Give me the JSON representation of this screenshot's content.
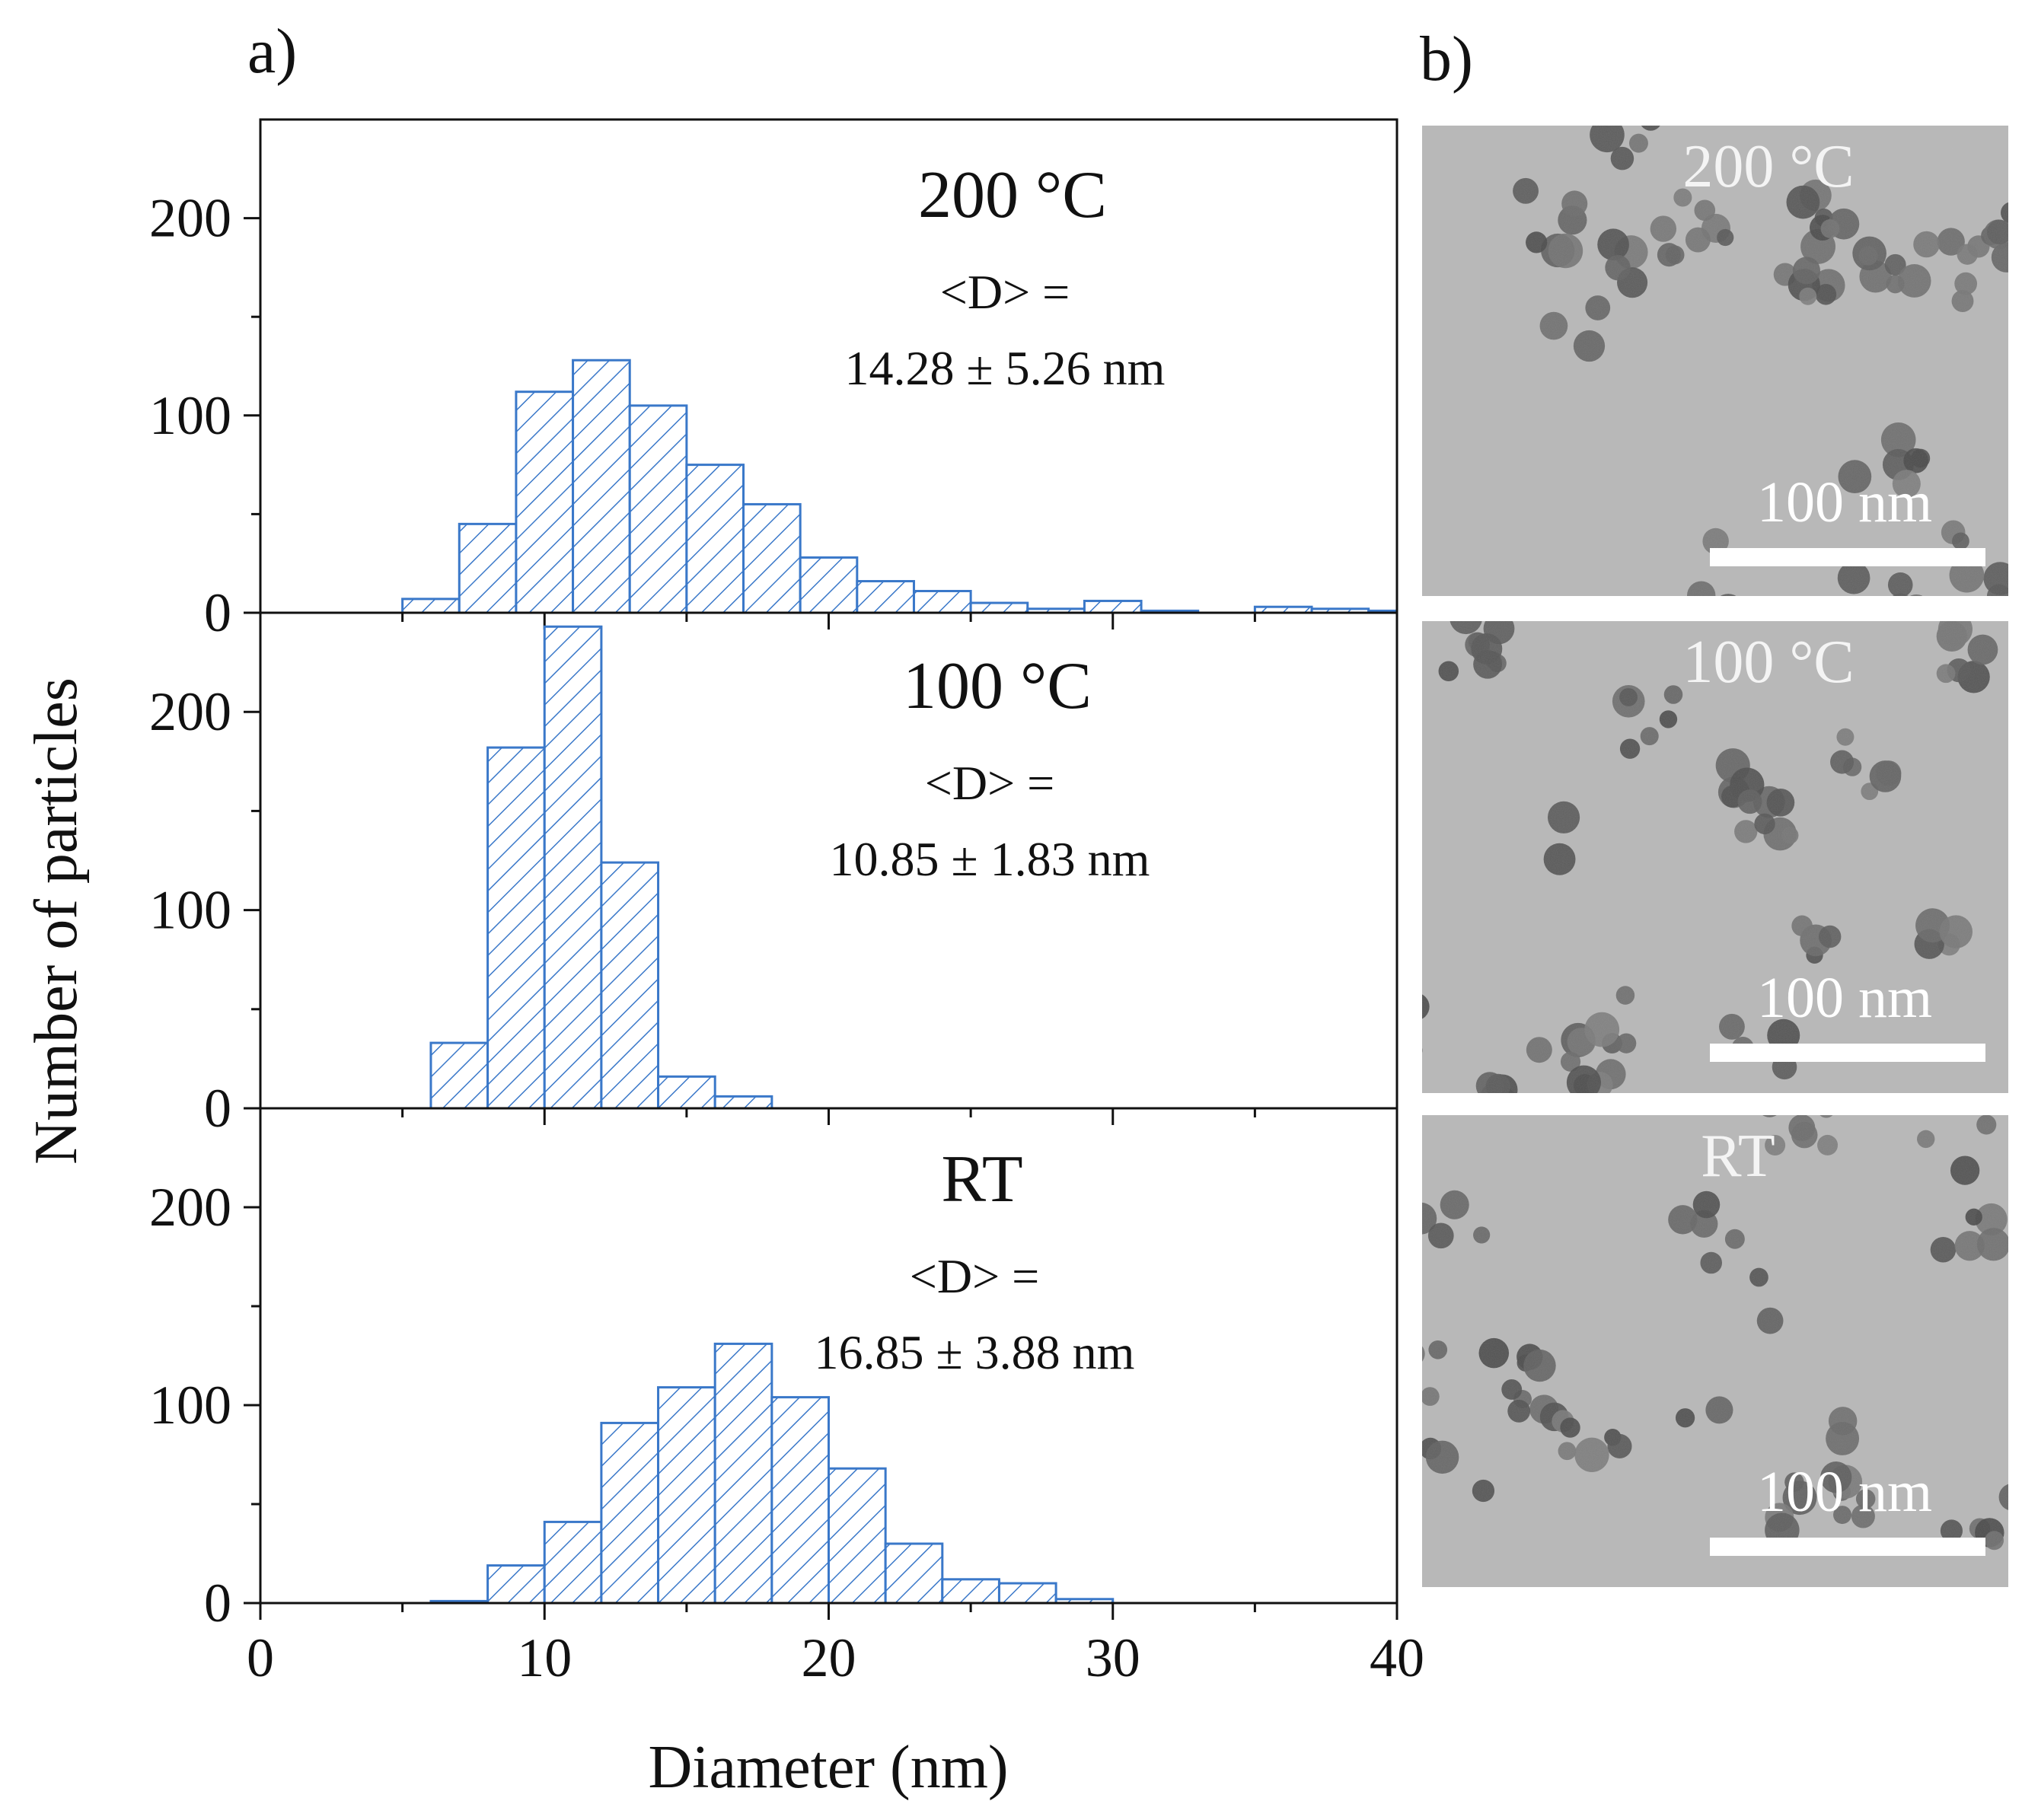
{
  "chart_data": {
    "type": "bar",
    "panel_label": "a)",
    "xlabel": "Diameter (nm)",
    "ylabel": "Number of particles",
    "xlim": [
      0,
      40
    ],
    "x_ticks": [
      "0",
      "10",
      "20",
      "30",
      "40"
    ],
    "y_ticks": [
      "0",
      "100",
      "200"
    ],
    "bin_width": 2,
    "bar_color": "#3a78c9",
    "hatch": "diagonal",
    "panels": [
      {
        "name": "200 °C",
        "label": "200 °C",
        "stat_label": "<D> =",
        "stat_value": "14.28 ± 5.26 nm",
        "ylim": [
          0,
          250
        ],
        "bins": [
          {
            "start": 5,
            "end": 7,
            "count": 7
          },
          {
            "start": 7,
            "end": 9,
            "count": 45
          },
          {
            "start": 9,
            "end": 11,
            "count": 112
          },
          {
            "start": 11,
            "end": 13,
            "count": 128
          },
          {
            "start": 13,
            "end": 15,
            "count": 105
          },
          {
            "start": 15,
            "end": 17,
            "count": 75
          },
          {
            "start": 17,
            "end": 19,
            "count": 55
          },
          {
            "start": 19,
            "end": 21,
            "count": 28
          },
          {
            "start": 21,
            "end": 23,
            "count": 16
          },
          {
            "start": 23,
            "end": 25,
            "count": 11
          },
          {
            "start": 25,
            "end": 27,
            "count": 5
          },
          {
            "start": 27,
            "end": 29,
            "count": 2
          },
          {
            "start": 29,
            "end": 31,
            "count": 6
          },
          {
            "start": 31,
            "end": 33,
            "count": 1
          },
          {
            "start": 35,
            "end": 37,
            "count": 3
          },
          {
            "start": 37,
            "end": 39,
            "count": 2
          },
          {
            "start": 39,
            "end": 40,
            "count": 1
          }
        ]
      },
      {
        "name": "100 °C",
        "label": "100 °C",
        "stat_label": "<D> =",
        "stat_value": "10.85 ± 1.83 nm",
        "ylim": [
          0,
          250
        ],
        "bins": [
          {
            "start": 6,
            "end": 8,
            "count": 33
          },
          {
            "start": 8,
            "end": 10,
            "count": 182
          },
          {
            "start": 10,
            "end": 12,
            "count": 243
          },
          {
            "start": 12,
            "end": 14,
            "count": 124
          },
          {
            "start": 14,
            "end": 16,
            "count": 16
          },
          {
            "start": 16,
            "end": 18,
            "count": 6
          }
        ]
      },
      {
        "name": "RT",
        "label": "RT",
        "stat_label": "<D> =",
        "stat_value": "16.85 ± 3.88 nm",
        "ylim": [
          0,
          250
        ],
        "bins": [
          {
            "start": 6,
            "end": 8,
            "count": 1
          },
          {
            "start": 8,
            "end": 10,
            "count": 19
          },
          {
            "start": 10,
            "end": 12,
            "count": 41
          },
          {
            "start": 12,
            "end": 14,
            "count": 91
          },
          {
            "start": 14,
            "end": 16,
            "count": 109
          },
          {
            "start": 16,
            "end": 18,
            "count": 131
          },
          {
            "start": 18,
            "end": 20,
            "count": 104
          },
          {
            "start": 20,
            "end": 22,
            "count": 68
          },
          {
            "start": 22,
            "end": 24,
            "count": 30
          },
          {
            "start": 24,
            "end": 26,
            "count": 12
          },
          {
            "start": 26,
            "end": 28,
            "count": 10
          },
          {
            "start": 28,
            "end": 30,
            "count": 2
          }
        ]
      }
    ]
  },
  "images": {
    "panel_label": "b)",
    "background_color": "#b8b8b8",
    "particle_color": "#5e5e5e",
    "items": [
      {
        "label": "200 °C",
        "scale_label": "100 nm"
      },
      {
        "label": "100 °C",
        "scale_label": "100 nm"
      },
      {
        "label": "RT",
        "scale_label": "100 nm"
      }
    ]
  }
}
